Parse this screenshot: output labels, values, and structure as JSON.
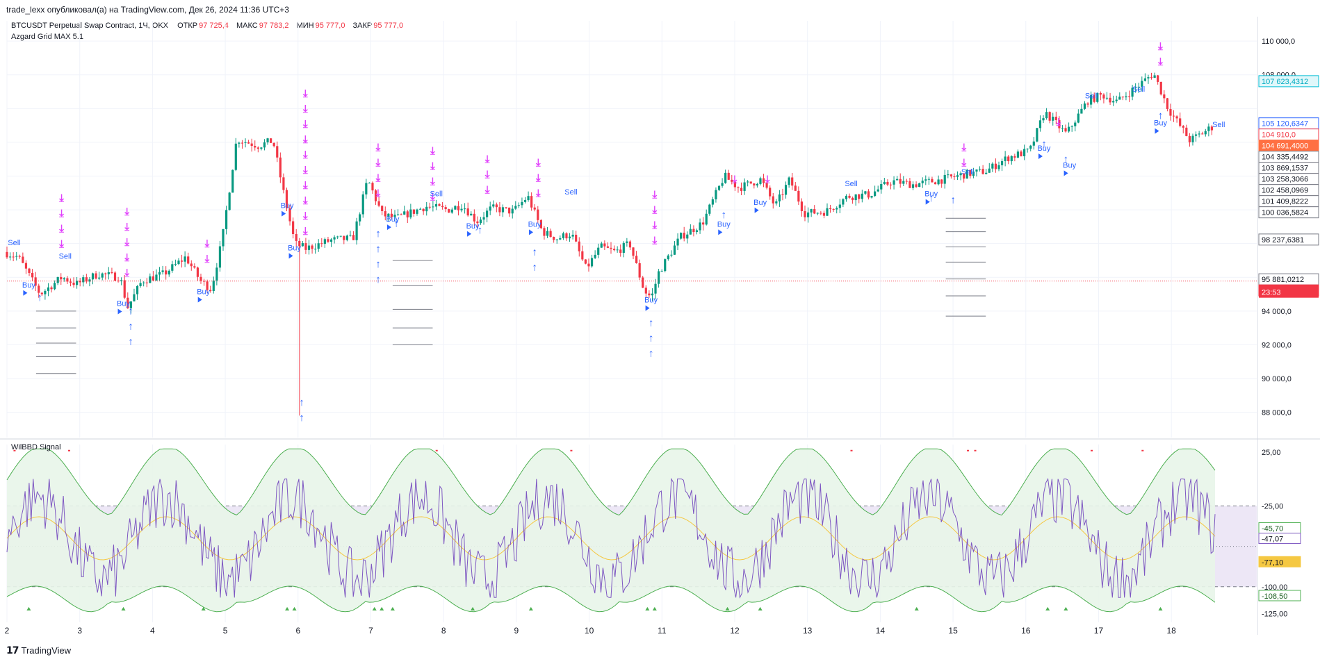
{
  "header": {
    "publish_text": "trade_lexx опубликовал(а) на TradingView.com, Дек 26, 2024 11:36 UTC+3"
  },
  "legend": {
    "symbol": "BTCUSDT Perpetual Swap Contract, 1Ч, OKX",
    "open_label": "ОТКР",
    "open_value": "97 725,4",
    "high_label": "МАКС",
    "high_value": "97 783,2",
    "low_label": "МИН",
    "low_value": "95 777,0",
    "close_label": "ЗАКР",
    "close_value": "95 777,0",
    "indicator": "Azgard Grid MAX 5.1"
  },
  "indicator_panel": {
    "title": "WilBBD Signal"
  },
  "footer": {
    "brand": "TradingView"
  },
  "colors": {
    "up": "#089981",
    "down": "#f23645",
    "buy": "#2962ff",
    "sell": "#e040fb",
    "osc_line": "#7e57c2",
    "osc_mid": "#f5c842",
    "band": "#4caf50",
    "band_fill": "#e8f5e9",
    "zone_fill": "#ede7f6"
  },
  "chart_data": [
    {
      "type": "candlestick",
      "title": "BTCUSDT Perpetual Swap Contract, 1Ч, OKX",
      "x_ticks": [
        "2",
        "3",
        "4",
        "5",
        "6",
        "7",
        "8",
        "9",
        "10",
        "11",
        "12",
        "13",
        "14",
        "15",
        "16",
        "17",
        "18"
      ],
      "y_ticks": [
        "110 000,0",
        "108 000,0",
        "94 000,0",
        "92 000,0",
        "90 000,0",
        "88 000,0"
      ],
      "ylim": [
        86500,
        111200
      ],
      "anchors": [
        [
          2.0,
          97500
        ],
        [
          2.2,
          97200
        ],
        [
          2.5,
          95000
        ],
        [
          2.8,
          96000
        ],
        [
          3.0,
          95600
        ],
        [
          3.3,
          96200
        ],
        [
          3.6,
          96000
        ],
        [
          3.7,
          94200
        ],
        [
          3.9,
          95800
        ],
        [
          4.2,
          96200
        ],
        [
          4.5,
          97200
        ],
        [
          4.7,
          95800
        ],
        [
          4.85,
          95300
        ],
        [
          5.0,
          98200
        ],
        [
          5.2,
          104200
        ],
        [
          5.5,
          103800
        ],
        [
          5.7,
          104100
        ],
        [
          5.85,
          100900
        ],
        [
          6.0,
          98000
        ],
        [
          6.15,
          97700
        ],
        [
          6.5,
          98200
        ],
        [
          6.8,
          98300
        ],
        [
          7.0,
          101800
        ],
        [
          7.2,
          99700
        ],
        [
          7.4,
          99500
        ],
        [
          7.8,
          100200
        ],
        [
          8.1,
          100000
        ],
        [
          8.3,
          100300
        ],
        [
          8.5,
          99300
        ],
        [
          8.7,
          100100
        ],
        [
          9.0,
          99900
        ],
        [
          9.2,
          100800
        ],
        [
          9.4,
          98700
        ],
        [
          9.6,
          98300
        ],
        [
          9.8,
          98600
        ],
        [
          10.0,
          96500
        ],
        [
          10.2,
          97800
        ],
        [
          10.4,
          97500
        ],
        [
          10.6,
          98000
        ],
        [
          10.8,
          95200
        ],
        [
          10.9,
          94800
        ],
        [
          11.0,
          96300
        ],
        [
          11.3,
          98400
        ],
        [
          11.6,
          99200
        ],
        [
          11.9,
          102000
        ],
        [
          12.1,
          101300
        ],
        [
          12.4,
          101800
        ],
        [
          12.6,
          100200
        ],
        [
          12.8,
          101800
        ],
        [
          13.0,
          99800
        ],
        [
          13.3,
          99900
        ],
        [
          13.6,
          100800
        ],
        [
          13.9,
          100900
        ],
        [
          14.2,
          101700
        ],
        [
          14.5,
          101500
        ],
        [
          14.9,
          101800
        ],
        [
          15.2,
          102100
        ],
        [
          15.5,
          102300
        ],
        [
          15.8,
          103100
        ],
        [
          16.1,
          103500
        ],
        [
          16.3,
          105800
        ],
        [
          16.6,
          104500
        ],
        [
          16.9,
          106500
        ],
        [
          17.1,
          106800
        ],
        [
          17.3,
          106400
        ],
        [
          17.6,
          107400
        ],
        [
          17.8,
          108100
        ],
        [
          18.0,
          106000
        ],
        [
          18.3,
          104100
        ],
        [
          18.6,
          104900
        ]
      ],
      "candle_count": 380,
      "price_labels": [
        {
          "value": "107 623,4312",
          "price": 107623,
          "style": "cyan"
        },
        {
          "value": "105 120,6347",
          "price": 105121,
          "style": "blue"
        },
        {
          "value": "104 910,0",
          "price": 104910,
          "style": "red"
        },
        {
          "value": "104 691,4000",
          "price": 104691,
          "style": "orange"
        },
        {
          "value": "104 335,4492",
          "price": 104335,
          "style": "gray"
        },
        {
          "value": "103 869,1537",
          "price": 103869,
          "style": "gray"
        },
        {
          "value": "103 258,3066",
          "price": 103258,
          "style": "gray"
        },
        {
          "value": "102 458,0969",
          "price": 102458,
          "style": "gray"
        },
        {
          "value": "101 409,8222",
          "price": 101410,
          "style": "gray"
        },
        {
          "value": "100 036,5824",
          "price": 100037,
          "style": "gray"
        },
        {
          "value": "98 237,6381",
          "price": 98238,
          "style": "gray"
        },
        {
          "value": "95 881,0212",
          "price": 95881,
          "style": "gray"
        },
        {
          "value": "95 777,0",
          "price": 95777,
          "style": "last"
        }
      ],
      "last_price_timer": "23:53",
      "signals": [
        {
          "text": "Sell",
          "x": 2.1,
          "price": 97900
        },
        {
          "text": "Sell",
          "x": 2.8,
          "price": 97100
        },
        {
          "text": "Buy",
          "x": 2.3,
          "price": 95400
        },
        {
          "text": "Buy",
          "x": 3.6,
          "price": 94300
        },
        {
          "text": "Buy",
          "x": 4.7,
          "price": 95000
        },
        {
          "text": "Buy",
          "x": 5.85,
          "price": 100100
        },
        {
          "text": "Buy",
          "x": 5.95,
          "price": 97600
        },
        {
          "text": "Buy",
          "x": 7.3,
          "price": 99300
        },
        {
          "text": "Sell",
          "x": 7.9,
          "price": 100800
        },
        {
          "text": "Buy",
          "x": 8.4,
          "price": 98900
        },
        {
          "text": "Buy",
          "x": 9.25,
          "price": 99000
        },
        {
          "text": "Sell",
          "x": 9.75,
          "price": 100900
        },
        {
          "text": "Buy",
          "x": 10.85,
          "price": 94500
        },
        {
          "text": "Buy",
          "x": 11.85,
          "price": 99000
        },
        {
          "text": "Buy",
          "x": 12.35,
          "price": 100300
        },
        {
          "text": "Sell",
          "x": 13.6,
          "price": 101400
        },
        {
          "text": "Buy",
          "x": 14.7,
          "price": 100800
        },
        {
          "text": "Sell",
          "x": 15.2,
          "price": 102100
        },
        {
          "text": "Buy",
          "x": 16.25,
          "price": 103500
        },
        {
          "text": "Sell",
          "x": 16.9,
          "price": 106600
        },
        {
          "text": "Buy",
          "x": 16.6,
          "price": 102500
        },
        {
          "text": "Sell",
          "x": 17.55,
          "price": 107000
        },
        {
          "text": "Buy",
          "x": 17.85,
          "price": 105000
        },
        {
          "text": "Sell",
          "x": 18.65,
          "price": 104900
        }
      ],
      "sell_arrow_columns": [
        {
          "x": 2.75,
          "from": 100500,
          "count": 4
        },
        {
          "x": 3.65,
          "from": 99700,
          "count": 5
        },
        {
          "x": 4.75,
          "from": 97800,
          "count": 2
        },
        {
          "x": 6.1,
          "from": 106700,
          "count": 10
        },
        {
          "x": 7.1,
          "from": 103500,
          "count": 4
        },
        {
          "x": 7.85,
          "from": 103300,
          "count": 4
        },
        {
          "x": 8.6,
          "from": 102800,
          "count": 3
        },
        {
          "x": 9.3,
          "from": 102600,
          "count": 3
        },
        {
          "x": 10.9,
          "from": 100700,
          "count": 4
        },
        {
          "x": 12.0,
          "from": 101600,
          "count": 1
        },
        {
          "x": 12.45,
          "from": 101600,
          "count": 1
        },
        {
          "x": 15.15,
          "from": 103500,
          "count": 2
        },
        {
          "x": 16.45,
          "from": 105000,
          "count": 1
        },
        {
          "x": 17.85,
          "from": 109500,
          "count": 2
        }
      ],
      "buy_arrow_columns": [
        {
          "x": 2.45,
          "from": 94600,
          "count": 1
        },
        {
          "x": 3.7,
          "from": 93800,
          "count": 3
        },
        {
          "x": 6.05,
          "from": 88400,
          "count": 2
        },
        {
          "x": 7.1,
          "from": 98400,
          "count": 4
        },
        {
          "x": 7.35,
          "from": 99000,
          "count": 1
        },
        {
          "x": 8.5,
          "from": 98600,
          "count": 1
        },
        {
          "x": 9.25,
          "from": 97300,
          "count": 2
        },
        {
          "x": 10.85,
          "from": 93100,
          "count": 3
        },
        {
          "x": 11.85,
          "from": 99500,
          "count": 1
        },
        {
          "x": 14.7,
          "from": 100500,
          "count": 1
        },
        {
          "x": 15.0,
          "from": 100400,
          "count": 1
        },
        {
          "x": 16.25,
          "from": 103700,
          "count": 1
        },
        {
          "x": 16.55,
          "from": 102800,
          "count": 1
        },
        {
          "x": 17.85,
          "from": 105400,
          "count": 1
        }
      ]
    },
    {
      "type": "line",
      "title": "WilBBD Signal",
      "y_ticks": [
        "25,00",
        "-25,00",
        "-100,00",
        "-125,00"
      ],
      "ylim": [
        -133,
        32
      ],
      "zone": [
        -25,
        -100
      ],
      "value_labels": [
        {
          "value": "-45,70",
          "level": -45.7,
          "style": "green"
        },
        {
          "value": "-47,07",
          "level": -47.07,
          "style": "purple"
        },
        {
          "value": "-77,10",
          "level": -77.1,
          "style": "yellow"
        },
        {
          "value": "-108,50",
          "level": -108.5,
          "style": "green"
        }
      ]
    }
  ]
}
